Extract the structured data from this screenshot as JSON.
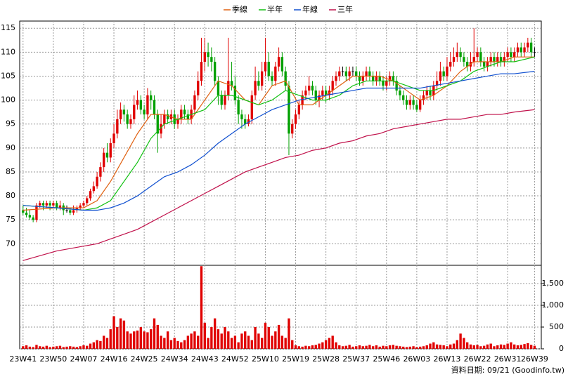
{
  "chart_data": {
    "type": "candlestick",
    "up_color": "#e00000",
    "down_color": "#00a000",
    "ylim": [
      65.5,
      116.5
    ],
    "yticks": [
      70,
      75,
      80,
      85,
      90,
      95,
      100,
      105,
      110,
      115
    ],
    "xlim": [
      -1,
      154
    ],
    "xticks": [
      {
        "value": 0,
        "label": "23W41"
      },
      {
        "value": 9,
        "label": "23W50"
      },
      {
        "value": 18,
        "label": "24W07"
      },
      {
        "value": 27,
        "label": "24W16"
      },
      {
        "value": 36,
        "label": "24W25"
      },
      {
        "value": 45,
        "label": "24W34"
      },
      {
        "value": 54,
        "label": "24W43"
      },
      {
        "value": 63,
        "label": "24W52"
      },
      {
        "value": 72,
        "label": "25W10"
      },
      {
        "value": 81,
        "label": "25W19"
      },
      {
        "value": 90,
        "label": "25W28"
      },
      {
        "value": 99,
        "label": "25W37"
      },
      {
        "value": 108,
        "label": "25W46"
      },
      {
        "value": 117,
        "label": "26W03"
      },
      {
        "value": 126,
        "label": "26W13"
      },
      {
        "value": 135,
        "label": "26W22"
      },
      {
        "value": 144,
        "label": "26W31"
      },
      {
        "value": 152,
        "label": "26W39"
      }
    ],
    "grid": true,
    "open": [
      77,
      76.5,
      76,
      75.5,
      75,
      78,
      78.5,
      78,
      78.5,
      78,
      78.5,
      77.5,
      78,
      77,
      77,
      76.5,
      77,
      77.5,
      78,
      78.5,
      79.5,
      81,
      82,
      84,
      86,
      89,
      88,
      91,
      93,
      96,
      98,
      97,
      95,
      96,
      99,
      100,
      98,
      97,
      101,
      100,
      97,
      93,
      95,
      97,
      96,
      97,
      95,
      96,
      98,
      97,
      96,
      98,
      101,
      104,
      108,
      110,
      109,
      108,
      104,
      101,
      99,
      101,
      104,
      103,
      100,
      97,
      96,
      95,
      96,
      101,
      104,
      103,
      106,
      108,
      105,
      104,
      107,
      109,
      106,
      103,
      93,
      95,
      97,
      99,
      101,
      102,
      103,
      102,
      100,
      101,
      102,
      101,
      102,
      104,
      105,
      106,
      106,
      105,
      106,
      106,
      105,
      104,
      105,
      106,
      105,
      104,
      105,
      104,
      103,
      104,
      105,
      104,
      102,
      101,
      100,
      99,
      100,
      99,
      98,
      100,
      101,
      102,
      101,
      103,
      104,
      106,
      105,
      107,
      108,
      109,
      110,
      109,
      108,
      107,
      108,
      109,
      110,
      108,
      107,
      108,
      109,
      108,
      109,
      108,
      109,
      110,
      109,
      110,
      111,
      110,
      111,
      112,
      110
    ],
    "high": [
      78,
      77.5,
      77,
      76,
      78.5,
      79,
      79,
      79,
      79,
      79,
      79,
      79,
      78.5,
      78,
      77.5,
      78,
      78,
      78.5,
      79,
      80,
      81.5,
      83,
      85,
      87,
      90,
      91,
      92,
      95,
      98,
      99.5,
      99,
      98,
      97,
      101,
      102,
      101,
      99,
      102.5,
      102,
      101,
      98,
      97,
      98,
      98,
      98,
      98,
      97,
      99,
      99,
      98,
      99,
      102,
      106,
      113,
      113,
      112,
      111,
      109,
      105,
      102,
      102,
      113,
      108,
      105,
      101,
      98,
      97,
      97,
      102,
      107,
      106,
      108,
      113,
      110,
      106,
      108,
      111,
      110,
      107,
      104,
      96,
      98,
      100,
      102,
      103,
      105,
      104,
      103,
      102,
      103,
      103,
      103,
      105,
      106,
      107,
      107,
      107,
      107,
      107,
      107,
      106,
      106,
      107,
      107,
      106,
      106,
      106,
      105,
      105,
      106,
      106,
      105,
      103,
      102,
      101,
      101,
      101,
      100,
      101,
      102,
      103,
      103,
      104,
      106,
      108,
      107,
      109,
      110,
      111,
      112,
      111,
      110,
      109,
      110,
      115,
      111,
      111,
      109,
      109,
      110,
      110,
      110,
      110,
      110,
      111,
      111,
      111,
      112,
      112,
      112,
      113,
      113,
      111
    ],
    "low": [
      76,
      75.5,
      75,
      74.5,
      74.5,
      77.5,
      77,
      77.5,
      77,
      77.5,
      77,
      77,
      76,
      76.5,
      76,
      76,
      76.5,
      77,
      77.5,
      78,
      79,
      80.5,
      81.5,
      83,
      85,
      87,
      87,
      90,
      92,
      95,
      95.5,
      94,
      94,
      95,
      98,
      97,
      96,
      96,
      98,
      96,
      89,
      92,
      94,
      95,
      95,
      94,
      94,
      95,
      96,
      95,
      95,
      97,
      100,
      103,
      106,
      107,
      106,
      103,
      99,
      98,
      98,
      100,
      102,
      99,
      95,
      94,
      94,
      94.5,
      95,
      100,
      102,
      102,
      105,
      104,
      103,
      103,
      106,
      105,
      102,
      88.5,
      92,
      94,
      96,
      98,
      100,
      101,
      101,
      99,
      98.5,
      100,
      99.5,
      100,
      101,
      103,
      104,
      105,
      104,
      104,
      105,
      104,
      103,
      103,
      104,
      104,
      103,
      103,
      103,
      102,
      102,
      103,
      103,
      101,
      100,
      99,
      98,
      98,
      98,
      97.5,
      97.5,
      99,
      100,
      100,
      100,
      102,
      103,
      104,
      104,
      106,
      107,
      108,
      108,
      107,
      106,
      106,
      107,
      108,
      107,
      106,
      106,
      107,
      107,
      107,
      107,
      107,
      108,
      108,
      108,
      109,
      109,
      109,
      110,
      109,
      109
    ],
    "close": [
      76.5,
      76,
      75.5,
      75,
      78,
      78.5,
      78,
      78.5,
      78,
      78.5,
      77.5,
      78,
      77,
      77,
      76.5,
      77,
      77.5,
      78,
      78.5,
      79.5,
      81,
      82,
      84,
      86,
      89,
      88,
      91,
      93,
      96,
      98,
      97,
      95,
      96,
      99,
      100,
      98,
      97,
      101,
      100,
      97,
      93,
      95,
      97,
      96,
      97,
      95,
      96,
      98,
      97,
      96,
      98,
      101,
      104,
      108,
      110,
      109,
      108,
      104,
      101,
      99,
      101,
      104,
      103,
      100,
      97,
      96,
      95,
      96,
      101,
      104,
      103,
      106,
      108,
      105,
      104,
      107,
      109,
      106,
      103,
      93,
      95,
      97,
      99,
      101,
      102,
      103,
      102,
      100,
      101,
      102,
      101,
      102,
      104,
      105,
      106,
      106,
      105,
      106,
      106,
      105,
      104,
      105,
      106,
      105,
      104,
      105,
      104,
      103,
      104,
      105,
      104,
      102,
      101,
      100,
      99,
      100,
      99,
      98,
      100,
      101,
      102,
      101,
      103,
      104,
      106,
      105,
      107,
      108,
      109,
      110,
      109,
      108,
      107,
      108,
      109,
      110,
      108,
      107,
      108,
      109,
      108,
      109,
      108,
      109,
      110,
      109,
      110,
      111,
      110,
      111,
      112,
      110,
      110
    ],
    "series": [
      {
        "name": "季線",
        "color": "#e06010",
        "x": [
          0,
          10,
          18,
          22,
          26,
          30,
          34,
          38,
          42,
          46,
          50,
          54,
          58,
          62,
          66,
          70,
          74,
          78,
          82,
          86,
          90,
          94,
          98,
          102,
          106,
          110,
          114,
          118,
          122,
          126,
          130,
          134,
          138,
          142,
          146,
          152
        ],
        "values": [
          77,
          77.5,
          77.5,
          79,
          83,
          88,
          93,
          97,
          97,
          96,
          96,
          100,
          104,
          103,
          100,
          99,
          103,
          104,
          99,
          99,
          101,
          103,
          105,
          105,
          105,
          104,
          102,
          100,
          101,
          103,
          106,
          108,
          108,
          108,
          109,
          109
        ]
      },
      {
        "name": "半年",
        "color": "#10c010",
        "x": [
          0,
          10,
          18,
          22,
          26,
          30,
          34,
          38,
          42,
          46,
          50,
          54,
          58,
          62,
          66,
          70,
          74,
          78,
          82,
          86,
          90,
          94,
          98,
          102,
          106,
          110,
          114,
          118,
          122,
          126,
          130,
          134,
          138,
          142,
          146,
          152
        ],
        "values": [
          78,
          77.5,
          77,
          77.5,
          79,
          83,
          87,
          92,
          95,
          96,
          97,
          98,
          101,
          101,
          100,
          99,
          100,
          102,
          101,
          100,
          100,
          101,
          103,
          104,
          104,
          104,
          103,
          102,
          102,
          103,
          104,
          106,
          107,
          108,
          108,
          109
        ]
      },
      {
        "name": "年線",
        "color": "#1050d0",
        "x": [
          0,
          10,
          18,
          22,
          26,
          30,
          34,
          38,
          42,
          46,
          50,
          54,
          58,
          62,
          66,
          70,
          74,
          78,
          82,
          86,
          90,
          94,
          98,
          102,
          106,
          110,
          114,
          118,
          122,
          126,
          130,
          134,
          138,
          142,
          146,
          152
        ],
        "values": [
          78,
          77.5,
          77,
          77,
          77.5,
          78.5,
          80,
          82,
          84,
          85,
          86.5,
          88.5,
          91,
          93,
          95,
          96.5,
          98,
          99,
          100,
          100.5,
          101,
          101.5,
          102,
          102.5,
          102.5,
          102.5,
          102.5,
          102.5,
          103,
          103.5,
          104,
          104.5,
          105,
          105.5,
          105.5,
          106
        ]
      },
      {
        "name": "三年",
        "color": "#c0104a",
        "x": [
          0,
          10,
          18,
          22,
          26,
          30,
          34,
          38,
          42,
          46,
          50,
          54,
          58,
          62,
          66,
          70,
          74,
          78,
          82,
          86,
          90,
          94,
          98,
          102,
          106,
          110,
          114,
          118,
          122,
          126,
          130,
          134,
          138,
          142,
          146,
          152
        ],
        "values": [
          66.5,
          68.5,
          69.5,
          70,
          71,
          72,
          73,
          74.5,
          76,
          77.5,
          79,
          80.5,
          82,
          83.5,
          85,
          86,
          87,
          88,
          88.5,
          89.5,
          90,
          91,
          91.5,
          92.5,
          93,
          94,
          94.5,
          95,
          95.5,
          96,
          96,
          96.5,
          97,
          97,
          97.5,
          98
        ]
      }
    ],
    "volume": [
      60,
      80,
      50,
      40,
      90,
      60,
      50,
      70,
      40,
      50,
      60,
      70,
      40,
      50,
      60,
      50,
      40,
      60,
      80,
      70,
      120,
      150,
      200,
      180,
      300,
      250,
      450,
      750,
      500,
      700,
      650,
      400,
      350,
      400,
      420,
      500,
      400,
      380,
      450,
      700,
      550,
      300,
      250,
      400,
      200,
      250,
      180,
      150,
      200,
      300,
      350,
      400,
      300,
      1900,
      600,
      250,
      500,
      700,
      450,
      350,
      500,
      400,
      250,
      300,
      150,
      350,
      400,
      300,
      200,
      500,
      350,
      250,
      600,
      500,
      300,
      400,
      550,
      300,
      250,
      700,
      200,
      80,
      60,
      50,
      70,
      60,
      80,
      90,
      120,
      150,
      200,
      250,
      300,
      150,
      80,
      60,
      70,
      90,
      50,
      60,
      80,
      60,
      70,
      90,
      60,
      80,
      50,
      70,
      60,
      80,
      90,
      70,
      60,
      50,
      40,
      50,
      60,
      40,
      50,
      60,
      80,
      120,
      150,
      100,
      90,
      80,
      60,
      100,
      120,
      200,
      350,
      250,
      150,
      100,
      80,
      90,
      60,
      70,
      100,
      120,
      60,
      80,
      100,
      90,
      120,
      150,
      100,
      80,
      90,
      110,
      130,
      90,
      70
    ],
    "volume_color": "#e00000",
    "volume_ylim": [
      0,
      1920
    ],
    "volume_yticks": [
      0,
      500,
      {
        "value": 1000,
        "label": "1,000"
      },
      {
        "value": 1500,
        "label": "1,500"
      }
    ],
    "source": "資料日期: 09/21 (Goodinfo.tw)"
  }
}
